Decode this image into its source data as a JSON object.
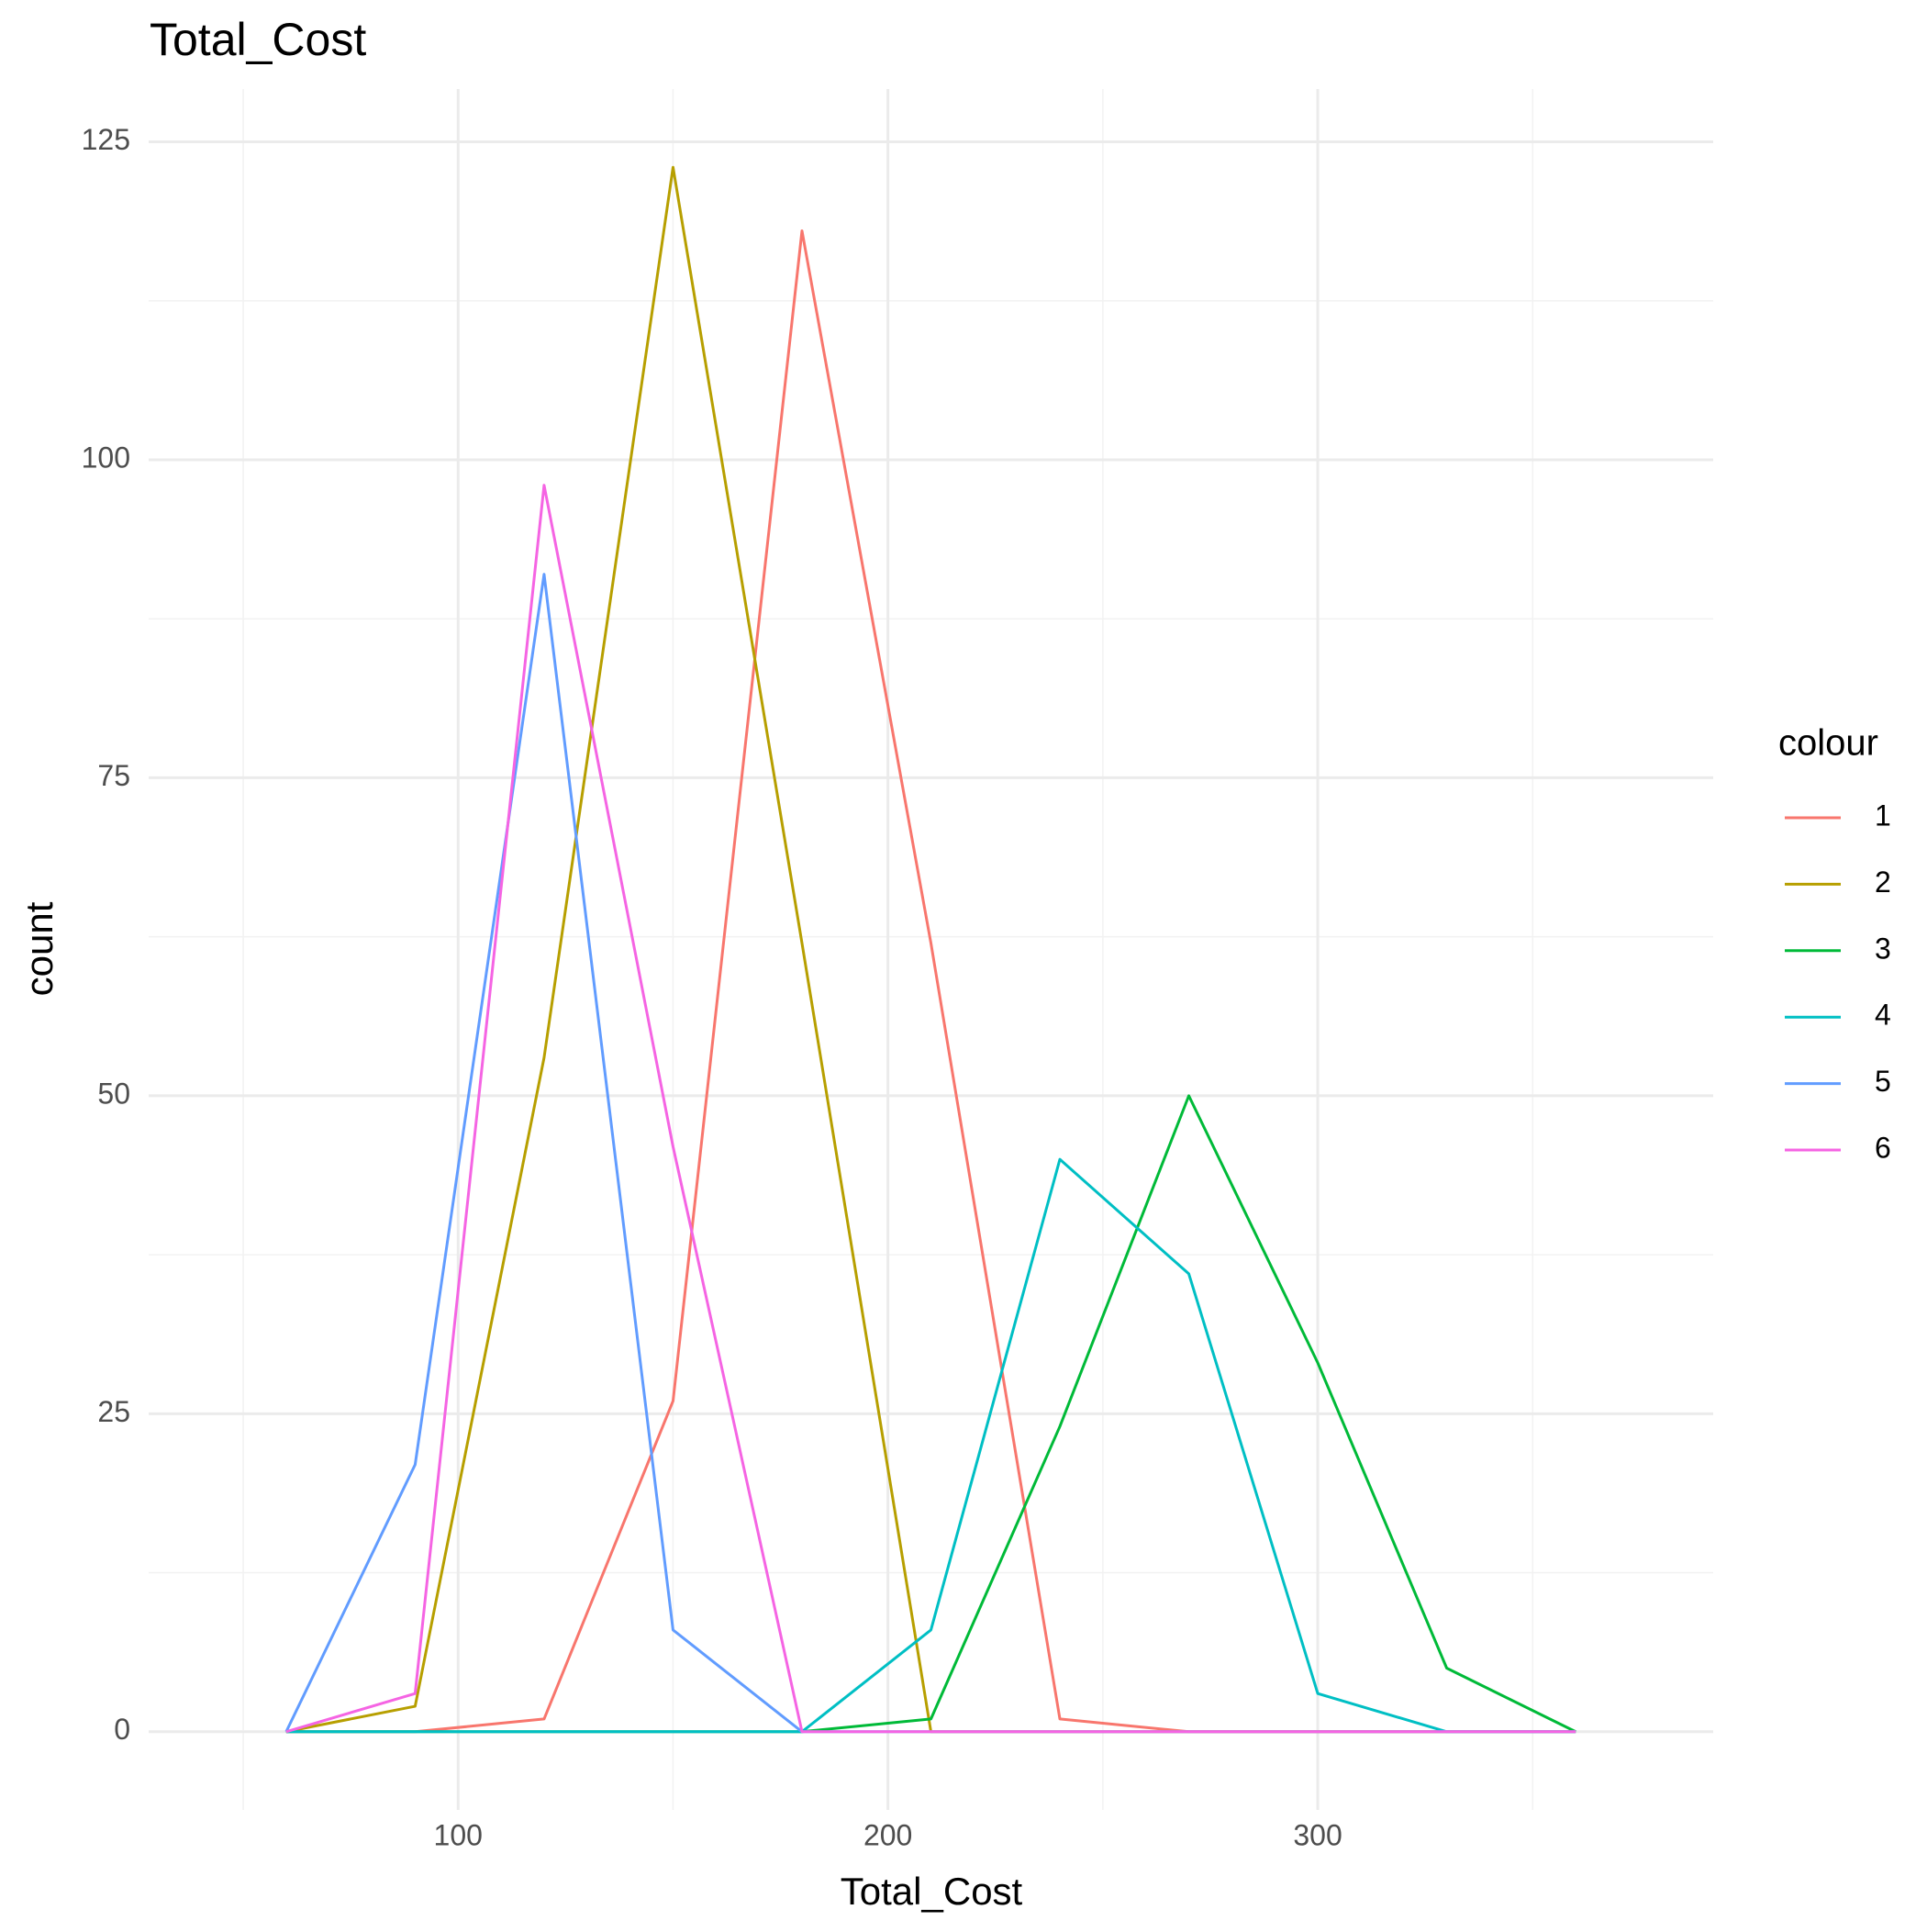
{
  "chart_data": {
    "type": "line",
    "title": "Total_Cost",
    "x_label": "Total_Cost",
    "y_label": "count",
    "x": [
      60,
      90,
      120,
      150,
      180,
      210,
      240,
      270,
      300,
      330,
      360
    ],
    "series": [
      {
        "name": "1",
        "color": "#F8766D",
        "values": [
          0,
          0,
          1,
          26,
          118,
          62,
          1,
          0,
          0,
          0,
          0
        ]
      },
      {
        "name": "2",
        "color": "#B79F00",
        "values": [
          0,
          2,
          53,
          123,
          62,
          0,
          0,
          0,
          0,
          0,
          0
        ]
      },
      {
        "name": "3",
        "color": "#00BA38",
        "values": [
          0,
          0,
          0,
          0,
          0,
          1,
          24,
          50,
          29,
          5,
          0
        ]
      },
      {
        "name": "4",
        "color": "#00BFC4",
        "values": [
          0,
          0,
          0,
          0,
          0,
          8,
          45,
          36,
          3,
          0,
          0
        ]
      },
      {
        "name": "5",
        "color": "#619CFF",
        "values": [
          0,
          21,
          91,
          8,
          0,
          0,
          0,
          0,
          0,
          0,
          0
        ]
      },
      {
        "name": "6",
        "color": "#F564E3",
        "values": [
          0,
          3,
          98,
          46,
          0,
          0,
          0,
          0,
          0,
          0,
          0
        ]
      }
    ],
    "legend_title": "colour",
    "legend_position": "right",
    "xlim": [
      28,
      392
    ],
    "xticks": [
      100,
      200,
      300
    ],
    "xminor": [
      50,
      150,
      250,
      350
    ],
    "ylim": [
      -6.15,
      129.15
    ],
    "yticks": [
      0,
      25,
      50,
      75,
      100,
      125
    ],
    "yminor": [
      12.5,
      37.5,
      62.5,
      87.5,
      112.5
    ],
    "grid": true
  }
}
